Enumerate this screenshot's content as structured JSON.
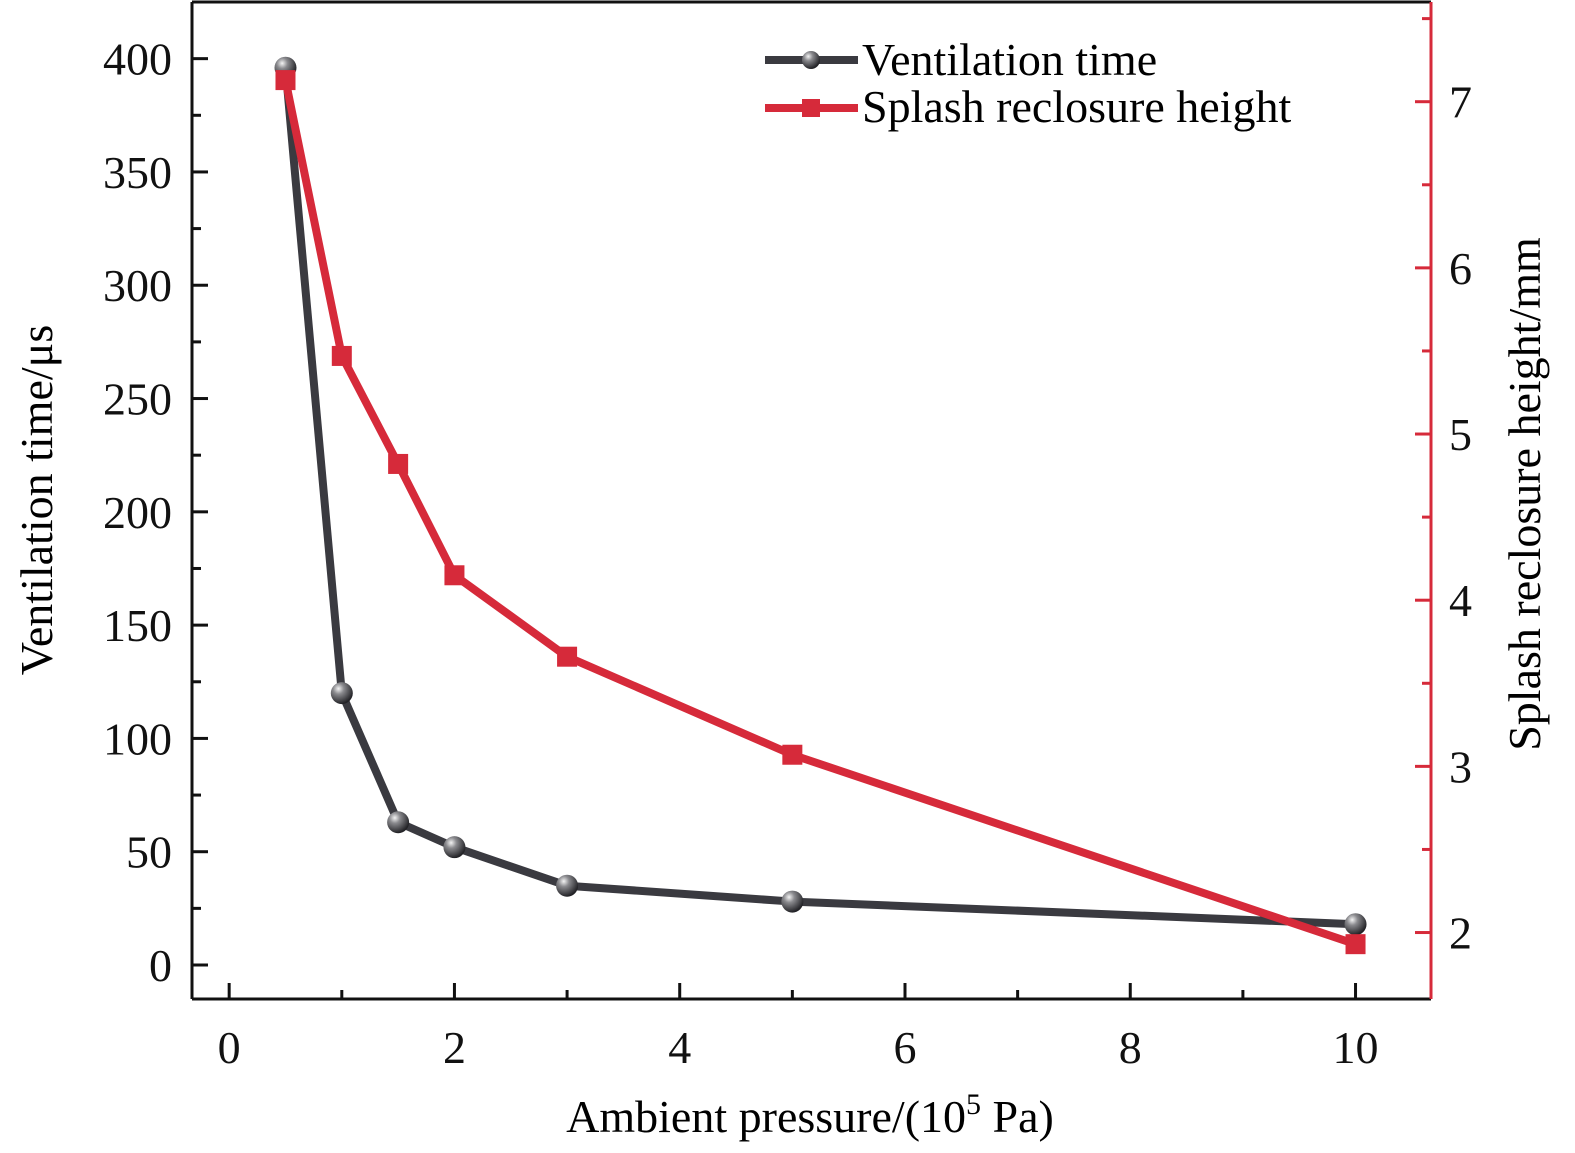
{
  "chart_data": {
    "type": "line",
    "x": [
      0.5,
      1,
      1.5,
      2,
      3,
      5,
      10
    ],
    "series": [
      {
        "name": "Ventilation time",
        "axis": "left",
        "color": "#3a3a40",
        "marker": "sphere",
        "values": [
          396,
          120,
          63,
          52,
          35,
          28,
          18
        ]
      },
      {
        "name": "Splash reclosure height",
        "axis": "right",
        "color": "#d62a3a",
        "marker": "square",
        "values": [
          7.13,
          5.47,
          4.82,
          4.15,
          3.66,
          3.07,
          1.93
        ]
      }
    ],
    "xlabel": "Ambient pressure/(10",
    "xlabel_sup": "5",
    "xlabel_tail": " Pa)",
    "ylabel": "Ventilation time/μs",
    "y2label": "Splash reclosure height/mm",
    "xlim": [
      -0.33,
      10.67
    ],
    "ylim": [
      -15,
      425
    ],
    "y2lim": [
      1.6,
      7.6
    ],
    "xticks": [
      0,
      2,
      4,
      6,
      8,
      10
    ],
    "xtick_labels": [
      "0",
      "2",
      "4",
      "6",
      "8",
      "10"
    ],
    "yticks": [
      0,
      50,
      100,
      150,
      200,
      250,
      300,
      350,
      400
    ],
    "ytick_labels": [
      "0",
      "50",
      "100",
      "150",
      "200",
      "250",
      "300",
      "350",
      "400"
    ],
    "y2ticks": [
      2,
      3,
      4,
      5,
      6,
      7
    ],
    "y2tick_labels": [
      "2",
      "3",
      "4",
      "5",
      "6",
      "7"
    ],
    "right_axis_color": "#d62a3a",
    "grid": false,
    "legend_position": "top-right"
  }
}
